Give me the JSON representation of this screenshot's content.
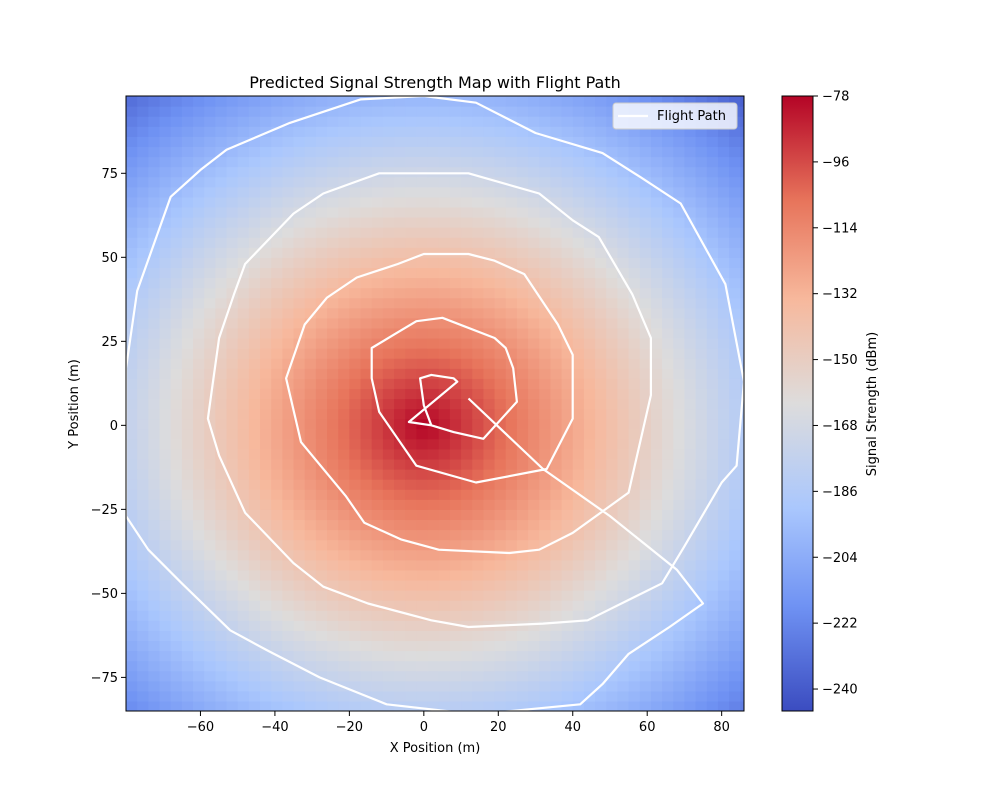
{
  "chart_data": {
    "type": "heatmap",
    "title": "Predicted Signal Strength Map with Flight Path",
    "xlabel": "X Position (m)",
    "ylabel": "Y Position (m)",
    "xlim": [
      -80,
      86
    ],
    "ylim": [
      -85,
      98
    ],
    "x_ticks": [
      -60,
      -40,
      -20,
      0,
      20,
      40,
      60,
      80
    ],
    "y_ticks": [
      -75,
      -50,
      -25,
      0,
      25,
      50,
      75
    ],
    "x_tick_labels": [
      "−60",
      "−40",
      "−20",
      "0",
      "20",
      "40",
      "60",
      "80"
    ],
    "y_tick_labels": [
      "−75",
      "−50",
      "−25",
      "0",
      "25",
      "50",
      "75"
    ],
    "colorbar": {
      "label": "Signal Strength (dBm)",
      "range": [
        -246,
        -78
      ],
      "ticks": [
        -240,
        -222,
        -204,
        -186,
        -168,
        -150,
        -132,
        -114,
        -96,
        -78
      ],
      "tick_labels": [
        "−240",
        "−222",
        "−204",
        "−186",
        "−168",
        "−150",
        "−132",
        "−114",
        "−96",
        "−78"
      ],
      "colormap": "coolwarm",
      "colormap_stops": [
        "#3b4cc0",
        "#6f92f3",
        "#aac7fd",
        "#dddcdc",
        "#f7b89c",
        "#e7745b",
        "#b40426"
      ]
    },
    "field": {
      "source": [
        0,
        0
      ],
      "peak_dbm": -78,
      "distance_scale_m": 120
    },
    "legend": {
      "placement": "top-right",
      "entries": [
        {
          "label": "Flight Path",
          "color": "#ffffff"
        }
      ]
    },
    "series": [
      {
        "name": "Flight Path",
        "color": "#ffffff",
        "points": [
          [
            12,
            8
          ],
          [
            32,
            -13
          ],
          [
            50,
            -27
          ],
          [
            68,
            -43
          ],
          [
            75,
            -53
          ],
          [
            66,
            -60
          ],
          [
            55,
            -68
          ],
          [
            48,
            -77
          ],
          [
            42,
            -83
          ],
          [
            14,
            -86
          ],
          [
            -10,
            -83
          ],
          [
            -28,
            -75
          ],
          [
            -42,
            -67
          ],
          [
            -52,
            -61
          ],
          [
            -65,
            -47
          ],
          [
            -74,
            -37
          ],
          [
            -80,
            -27
          ],
          [
            -80,
            -9
          ],
          [
            -80,
            17
          ],
          [
            -77,
            40
          ],
          [
            -68,
            68
          ],
          [
            -60,
            76
          ],
          [
            -53,
            82
          ],
          [
            -36,
            90
          ],
          [
            -17,
            97
          ],
          [
            0,
            98
          ],
          [
            14,
            96
          ],
          [
            30,
            87
          ],
          [
            48,
            81
          ],
          [
            58,
            74
          ],
          [
            69,
            66
          ],
          [
            81,
            42
          ],
          [
            86,
            13
          ],
          [
            84,
            -12
          ],
          [
            80,
            -17
          ],
          [
            70,
            -36
          ],
          [
            64,
            -47
          ],
          [
            44,
            -58
          ],
          [
            32,
            -59
          ],
          [
            12,
            -60
          ],
          [
            2,
            -58
          ],
          [
            -15,
            -53
          ],
          [
            -27,
            -48
          ],
          [
            -35,
            -41
          ],
          [
            -48,
            -26
          ],
          [
            -55,
            -9
          ],
          [
            -58,
            2
          ],
          [
            -57,
            10
          ],
          [
            -55,
            26
          ],
          [
            -51,
            39
          ],
          [
            -48,
            48
          ],
          [
            -35,
            63
          ],
          [
            -27,
            69
          ],
          [
            -17,
            73
          ],
          [
            -12,
            75
          ],
          [
            12,
            75
          ],
          [
            31,
            69
          ],
          [
            40,
            61
          ],
          [
            47,
            56
          ],
          [
            56,
            39
          ],
          [
            61,
            26
          ],
          [
            61,
            9
          ],
          [
            55,
            -20
          ],
          [
            40,
            -32
          ],
          [
            31,
            -37
          ],
          [
            23,
            -38
          ],
          [
            4,
            -37
          ],
          [
            -6,
            -34
          ],
          [
            -16,
            -29
          ],
          [
            -21,
            -21
          ],
          [
            -33,
            -5
          ],
          [
            -37,
            14
          ],
          [
            -32,
            30
          ],
          [
            -26,
            38
          ],
          [
            -18,
            44
          ],
          [
            -7,
            48
          ],
          [
            0,
            51
          ],
          [
            12,
            51
          ],
          [
            19,
            49
          ],
          [
            27,
            45
          ],
          [
            36,
            30
          ],
          [
            40,
            21
          ],
          [
            40,
            10
          ],
          [
            40,
            2
          ],
          [
            33,
            -13
          ],
          [
            14,
            -17
          ],
          [
            -2,
            -12
          ],
          [
            -12,
            4
          ],
          [
            -14,
            14
          ],
          [
            -14,
            23
          ],
          [
            -8,
            27
          ],
          [
            -2,
            31
          ],
          [
            5,
            32
          ],
          [
            19,
            26
          ],
          [
            22,
            23
          ],
          [
            24,
            17
          ],
          [
            25,
            7
          ],
          [
            16,
            -4
          ],
          [
            8,
            -2
          ],
          [
            2,
            0
          ],
          [
            -4,
            1
          ],
          [
            9,
            13
          ],
          [
            8,
            14
          ],
          [
            2,
            15
          ],
          [
            -1,
            14
          ],
          [
            0,
            6
          ],
          [
            2,
            0
          ]
        ]
      }
    ]
  }
}
